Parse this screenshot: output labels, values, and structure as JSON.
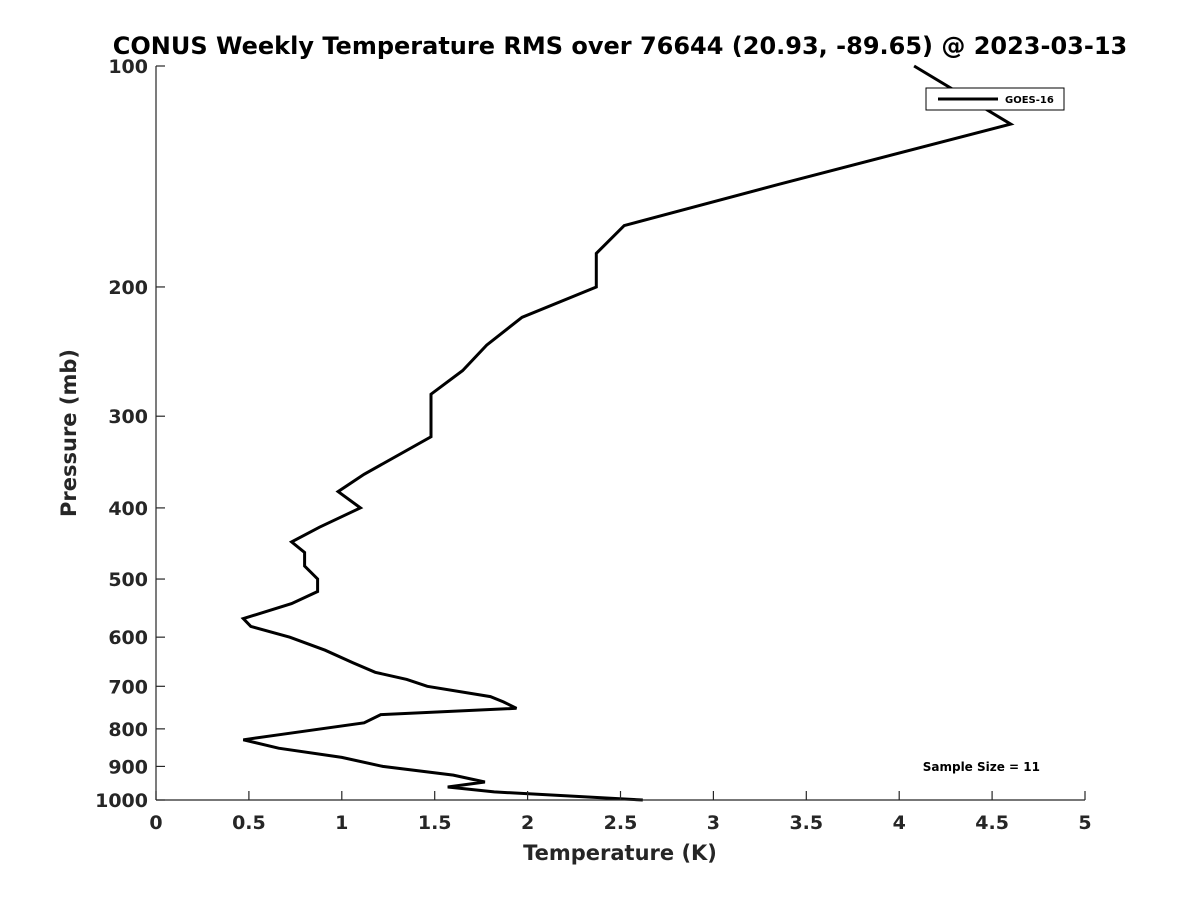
{
  "chart_data": {
    "type": "line",
    "title": "CONUS Weekly Temperature RMS over 76644 (20.93, -89.65) @ 2023-03-13",
    "xlabel": "Temperature (K)",
    "ylabel": "Pressure (mb)",
    "xlim": [
      0,
      5
    ],
    "ylim": [
      1000,
      100
    ],
    "y_scale": "log",
    "y_reversed": true,
    "xticks": [
      0,
      0.5,
      1,
      1.5,
      2,
      2.5,
      3,
      3.5,
      4,
      4.5,
      5
    ],
    "xtick_labels": [
      "0",
      "0.5",
      "1",
      "1.5",
      "2",
      "2.5",
      "3",
      "3.5",
      "4",
      "4.5",
      "5"
    ],
    "yticks": [
      100,
      200,
      300,
      400,
      500,
      600,
      700,
      800,
      900,
      1000
    ],
    "ytick_labels": [
      "100",
      "200",
      "300",
      "400",
      "500",
      "600",
      "700",
      "800",
      "900",
      "1000"
    ],
    "grid": false,
    "legend_position": "top-right",
    "annotation": "Sample Size = 11",
    "series": [
      {
        "name": "GOES-16",
        "color": "#000000",
        "points": [
          [
            4.08,
            100
          ],
          [
            4.6,
            120
          ],
          [
            3.35,
            145
          ],
          [
            2.52,
            165
          ],
          [
            2.37,
            180
          ],
          [
            2.37,
            200
          ],
          [
            1.97,
            220
          ],
          [
            1.78,
            240
          ],
          [
            1.65,
            260
          ],
          [
            1.48,
            280
          ],
          [
            1.48,
            300
          ],
          [
            1.48,
            320
          ],
          [
            1.12,
            360
          ],
          [
            0.98,
            380
          ],
          [
            1.1,
            400
          ],
          [
            0.88,
            425
          ],
          [
            0.73,
            445
          ],
          [
            0.8,
            460
          ],
          [
            0.8,
            480
          ],
          [
            0.87,
            500
          ],
          [
            0.87,
            520
          ],
          [
            0.73,
            540
          ],
          [
            0.47,
            566
          ],
          [
            0.51,
            580
          ],
          [
            0.72,
            600
          ],
          [
            0.91,
            625
          ],
          [
            1.06,
            650
          ],
          [
            1.18,
            670
          ],
          [
            1.35,
            685
          ],
          [
            1.46,
            700
          ],
          [
            1.8,
            723
          ],
          [
            1.87,
            735
          ],
          [
            1.94,
            750
          ],
          [
            1.21,
            765
          ],
          [
            1.12,
            785
          ],
          [
            0.66,
            815
          ],
          [
            0.47,
            828
          ],
          [
            0.66,
            850
          ],
          [
            1.0,
            875
          ],
          [
            1.22,
            900
          ],
          [
            1.6,
            925
          ],
          [
            1.77,
            945
          ],
          [
            1.57,
            960
          ],
          [
            1.82,
            975
          ],
          [
            2.62,
            1000
          ]
        ]
      }
    ]
  }
}
